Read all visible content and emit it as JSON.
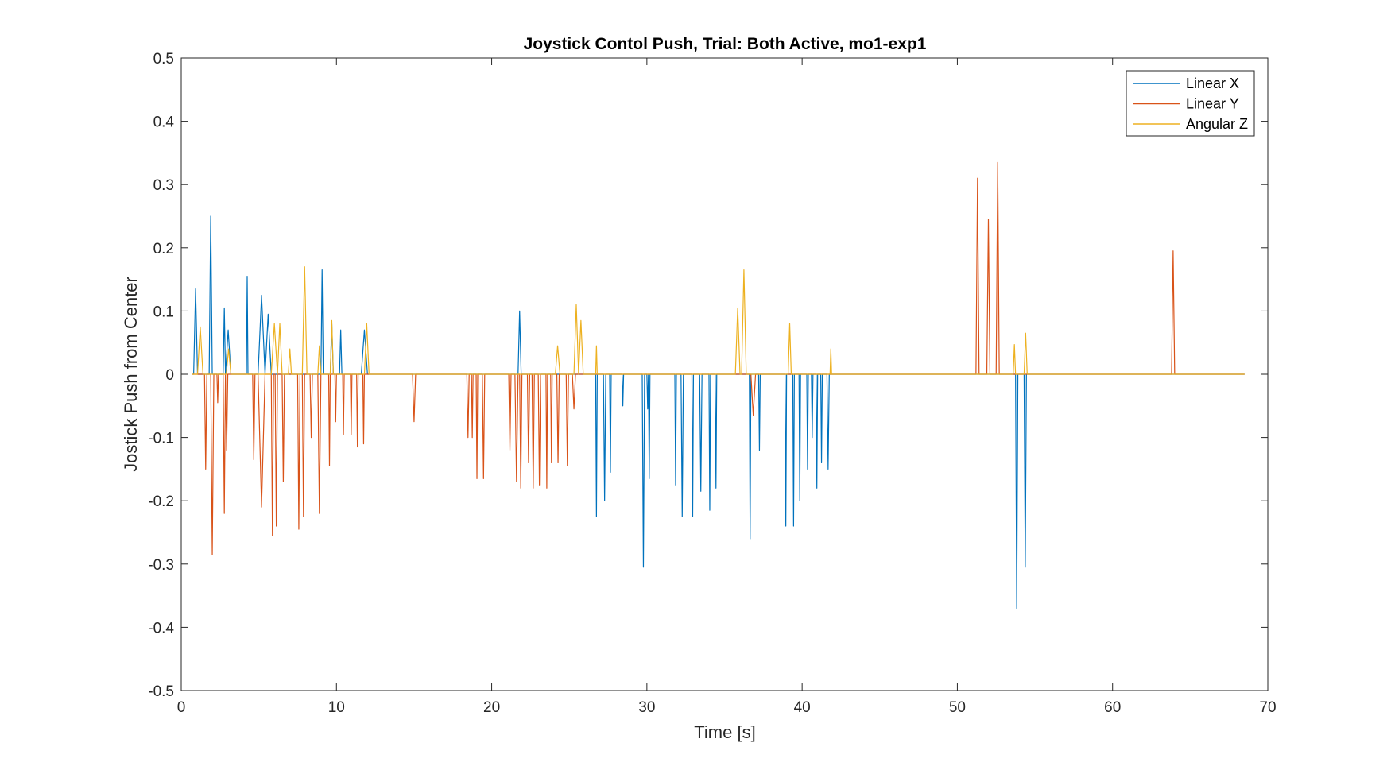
{
  "chart_data": {
    "type": "line",
    "title": "Joystick Contol Push,  Trial: Both Active, mo1-exp1",
    "xlabel": "Time [s]",
    "ylabel": "Jostick Push from Center",
    "xlim": [
      0,
      70
    ],
    "ylim": [
      -0.5,
      0.5
    ],
    "xticks": [
      0,
      10,
      20,
      30,
      40,
      50,
      60,
      70
    ],
    "yticks": [
      -0.5,
      -0.4,
      -0.3,
      -0.2,
      -0.1,
      0,
      0.1,
      0.2,
      0.3,
      0.4,
      0.5
    ],
    "xtick_labels": [
      "0",
      "10",
      "20",
      "30",
      "40",
      "50",
      "60",
      "70"
    ],
    "ytick_labels": [
      "-0.5",
      "-0.4",
      "-0.3",
      "-0.2",
      "-0.1",
      "0",
      "0.1",
      "0.2",
      "0.3",
      "0.4",
      "0.5"
    ],
    "legend_position": "top-right",
    "grid": false,
    "x_end": 68.5,
    "series": [
      {
        "name": "Linear X",
        "color": "#0072BD",
        "pulses": [
          [
            0.8,
            1.05,
            0.135
          ],
          [
            1.8,
            2.0,
            0.25
          ],
          [
            2.7,
            2.85,
            0.105
          ],
          [
            2.85,
            3.2,
            0.07
          ],
          [
            4.2,
            4.3,
            0.155
          ],
          [
            4.95,
            5.4,
            0.125
          ],
          [
            5.4,
            5.8,
            0.095
          ],
          [
            9.0,
            9.15,
            0.165
          ],
          [
            9.6,
            9.8,
            0.08
          ],
          [
            10.2,
            10.35,
            0.07
          ],
          [
            11.6,
            12.0,
            0.07
          ],
          [
            21.7,
            21.9,
            0.1
          ],
          [
            26.7,
            26.8,
            -0.225
          ],
          [
            27.2,
            27.35,
            -0.2
          ],
          [
            27.6,
            27.7,
            -0.155
          ],
          [
            28.4,
            28.5,
            -0.05
          ],
          [
            29.7,
            29.85,
            -0.305
          ],
          [
            30.0,
            30.1,
            -0.055
          ],
          [
            30.1,
            30.2,
            -0.165
          ],
          [
            31.8,
            31.9,
            -0.175
          ],
          [
            32.2,
            32.35,
            -0.225
          ],
          [
            32.9,
            33.0,
            -0.225
          ],
          [
            33.4,
            33.55,
            -0.185
          ],
          [
            34.0,
            34.1,
            -0.215
          ],
          [
            34.4,
            34.5,
            -0.18
          ],
          [
            36.6,
            36.7,
            -0.26
          ],
          [
            37.2,
            37.3,
            -0.12
          ],
          [
            38.9,
            39.0,
            -0.24
          ],
          [
            39.4,
            39.5,
            -0.24
          ],
          [
            39.8,
            39.9,
            -0.2
          ],
          [
            40.3,
            40.4,
            -0.15
          ],
          [
            40.6,
            40.7,
            -0.1
          ],
          [
            40.9,
            41.0,
            -0.18
          ],
          [
            41.2,
            41.3,
            -0.14
          ],
          [
            41.6,
            41.75,
            -0.15
          ],
          [
            53.75,
            53.9,
            -0.37
          ],
          [
            54.3,
            54.45,
            -0.305
          ]
        ]
      },
      {
        "name": "Linear Y",
        "color": "#D95319",
        "pulses": [
          [
            1.5,
            1.65,
            -0.15
          ],
          [
            1.9,
            2.1,
            -0.285
          ],
          [
            2.3,
            2.4,
            -0.045
          ],
          [
            2.7,
            2.85,
            -0.22
          ],
          [
            2.85,
            3.0,
            -0.12
          ],
          [
            4.6,
            4.75,
            -0.135
          ],
          [
            4.95,
            5.4,
            -0.21
          ],
          [
            5.8,
            5.95,
            -0.255
          ],
          [
            6.05,
            6.2,
            -0.24
          ],
          [
            6.5,
            6.65,
            -0.17
          ],
          [
            7.5,
            7.65,
            -0.245
          ],
          [
            7.8,
            7.95,
            -0.225
          ],
          [
            8.3,
            8.45,
            -0.1
          ],
          [
            8.8,
            9.0,
            -0.22
          ],
          [
            9.5,
            9.6,
            -0.145
          ],
          [
            9.9,
            10.0,
            -0.075
          ],
          [
            10.4,
            10.5,
            -0.095
          ],
          [
            10.9,
            11.0,
            -0.095
          ],
          [
            11.3,
            11.4,
            -0.115
          ],
          [
            11.7,
            11.8,
            -0.11
          ],
          [
            14.9,
            15.1,
            -0.075
          ],
          [
            18.4,
            18.55,
            -0.1
          ],
          [
            18.7,
            18.8,
            -0.1
          ],
          [
            19.0,
            19.1,
            -0.165
          ],
          [
            19.4,
            19.55,
            -0.165
          ],
          [
            21.1,
            21.25,
            -0.12
          ],
          [
            21.5,
            21.7,
            -0.17
          ],
          [
            21.8,
            21.95,
            -0.18
          ],
          [
            22.3,
            22.45,
            -0.14
          ],
          [
            22.6,
            22.75,
            -0.18
          ],
          [
            23.0,
            23.15,
            -0.175
          ],
          [
            23.5,
            23.6,
            -0.18
          ],
          [
            23.8,
            23.9,
            -0.14
          ],
          [
            24.2,
            24.35,
            -0.14
          ],
          [
            24.8,
            24.95,
            -0.145
          ],
          [
            25.2,
            25.4,
            -0.055
          ],
          [
            36.7,
            37.0,
            -0.065
          ],
          [
            51.2,
            51.4,
            0.31
          ],
          [
            51.9,
            52.1,
            0.245
          ],
          [
            52.5,
            52.7,
            0.335
          ],
          [
            63.8,
            64.0,
            0.195
          ]
        ]
      },
      {
        "name": "Angular Z",
        "color": "#EDB120",
        "pulses": [
          [
            1.05,
            1.4,
            0.075
          ],
          [
            2.9,
            3.2,
            0.04
          ],
          [
            5.8,
            6.2,
            0.08
          ],
          [
            6.2,
            6.5,
            0.08
          ],
          [
            6.9,
            7.1,
            0.04
          ],
          [
            7.8,
            8.1,
            0.17
          ],
          [
            8.8,
            9.0,
            0.045
          ],
          [
            9.6,
            9.8,
            0.085
          ],
          [
            11.8,
            12.1,
            0.08
          ],
          [
            25.3,
            25.6,
            0.11
          ],
          [
            25.6,
            25.9,
            0.085
          ],
          [
            24.1,
            24.4,
            0.045
          ],
          [
            26.7,
            26.8,
            0.045
          ],
          [
            35.7,
            36.0,
            0.105
          ],
          [
            36.1,
            36.4,
            0.165
          ],
          [
            39.1,
            39.3,
            0.08
          ],
          [
            41.8,
            41.9,
            0.04
          ],
          [
            53.6,
            53.75,
            0.047
          ],
          [
            54.3,
            54.5,
            0.065
          ]
        ]
      }
    ]
  }
}
